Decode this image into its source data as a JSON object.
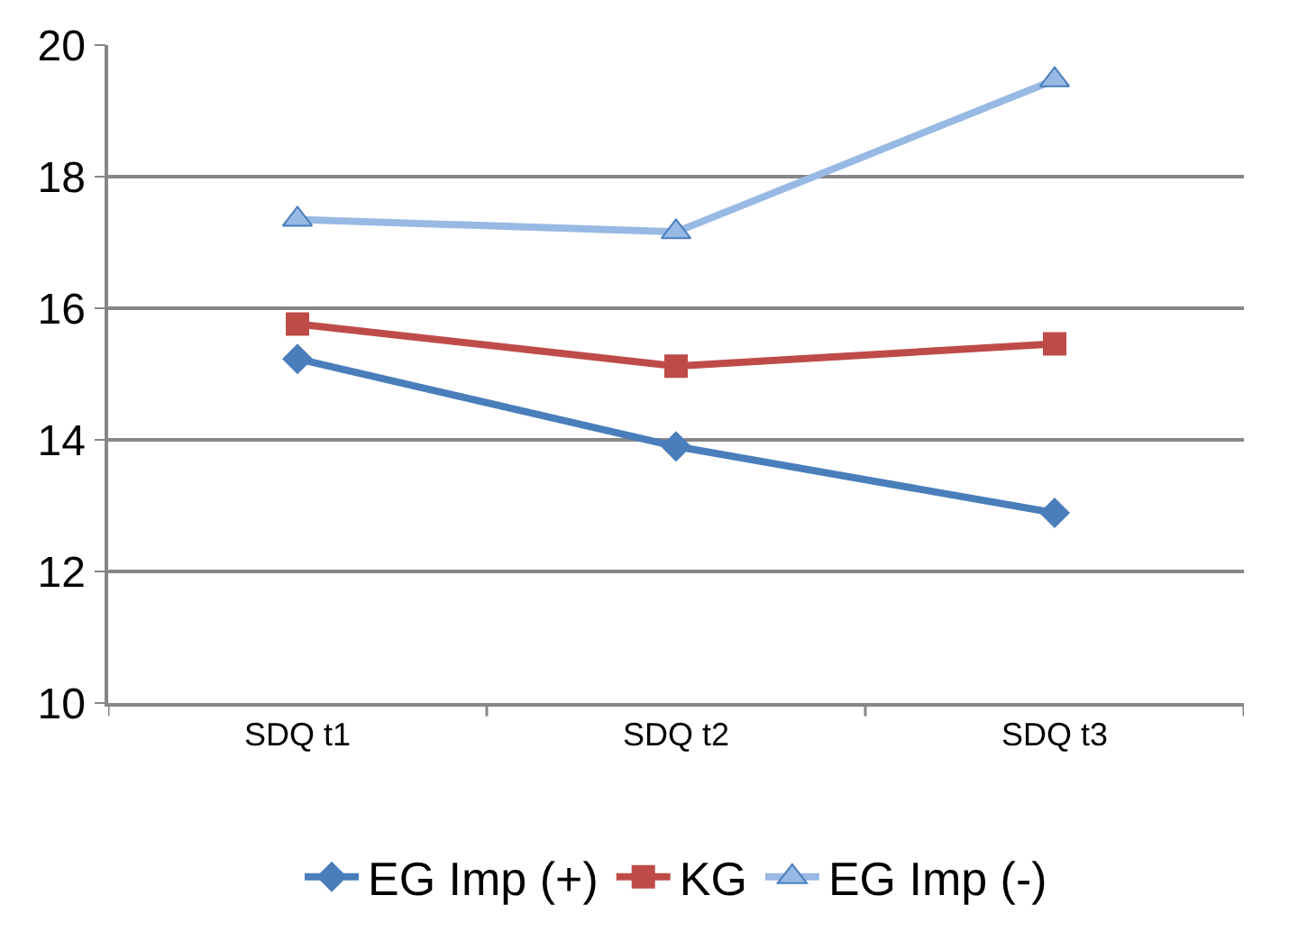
{
  "chart_data": {
    "type": "line",
    "categories": [
      "SDQ t1",
      "SDQ t2",
      "SDQ t3"
    ],
    "series": [
      {
        "name": "EG Imp (+)",
        "color": "#4a7ebb",
        "marker": "diamond",
        "values": [
          15.23,
          13.9,
          12.89
        ]
      },
      {
        "name": "KG",
        "color": "#be4b48",
        "marker": "square",
        "values": [
          15.76,
          15.12,
          15.46
        ]
      },
      {
        "name": "EG Imp (-)",
        "color": "#98b9e3",
        "marker": "triangle",
        "values": [
          17.35,
          17.16,
          19.47
        ]
      }
    ],
    "ylim": [
      10,
      20
    ],
    "yticks": [
      10,
      12,
      14,
      16,
      18,
      20
    ],
    "grid": "y",
    "legend": "bottom",
    "line_style": "solid"
  }
}
